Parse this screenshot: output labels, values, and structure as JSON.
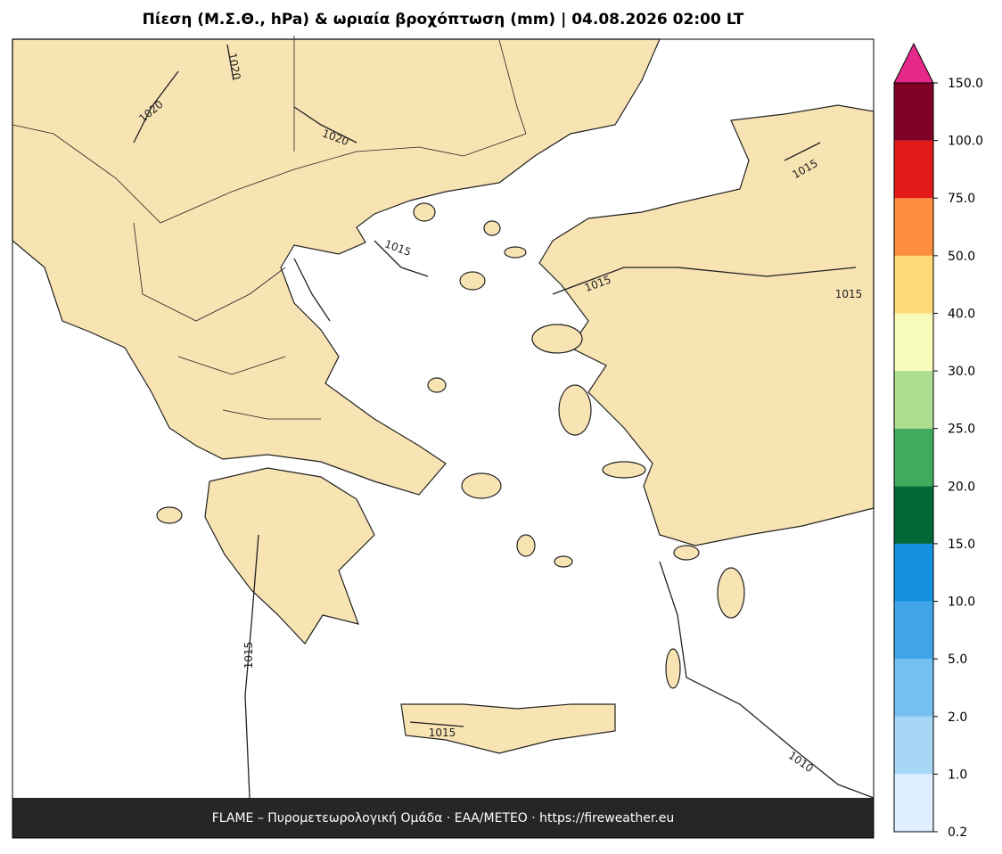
{
  "title": "Πίεση (Μ.Σ.Θ., hPa) & ωριαία βροχόπτωση (mm)  |  04.08.2026 02:00 LT",
  "footer": "FLAME – Πυρομετεωρολογική Ομάδα · ΕΑΑ/METEO · https://fireweather.eu",
  "contour_labels": [
    1020,
    1020,
    1020,
    1015,
    1015,
    1015,
    1015,
    1015,
    1015,
    1010
  ],
  "colorbar": {
    "ticks": [
      {
        "value": 0.2,
        "label": "0.2"
      },
      {
        "value": 1,
        "label": "1.0"
      },
      {
        "value": 2,
        "label": "2.0"
      },
      {
        "value": 5,
        "label": "5.0"
      },
      {
        "value": 10,
        "label": "10.0"
      },
      {
        "value": 15,
        "label": "15.0"
      },
      {
        "value": 20,
        "label": "20.0"
      },
      {
        "value": 25,
        "label": "25.0"
      },
      {
        "value": 30,
        "label": "30.0"
      },
      {
        "value": 40,
        "label": "40.0"
      },
      {
        "value": 50,
        "label": "50.0"
      },
      {
        "value": 75,
        "label": "75.0"
      },
      {
        "value": 100,
        "label": "100.0"
      },
      {
        "value": 150,
        "label": "150.0"
      }
    ],
    "colors": [
      "#def0ff",
      "#a6d8f6",
      "#74c0f0",
      "#40a6e8",
      "#1390e0",
      "#006837",
      "#41ab5d",
      "#addd8e",
      "#f7fbb9",
      "#fed976",
      "#fd8d3c",
      "#e31a1c",
      "#800026"
    ],
    "extend_color": "#e7298a"
  }
}
